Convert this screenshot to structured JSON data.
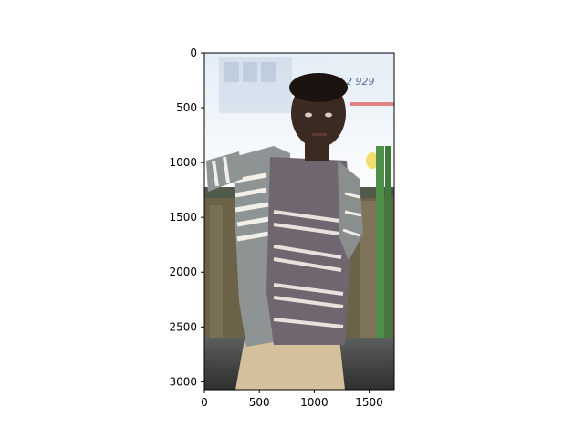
{
  "image_axes": {
    "x_range": [
      0,
      1728
    ],
    "y_range": [
      0,
      3072
    ],
    "x_ticks": [
      0,
      500,
      1000,
      1500
    ],
    "y_ticks": [
      0,
      500,
      1000,
      1500,
      2000,
      2500,
      3000
    ],
    "y_inverted": true
  },
  "photo": {
    "subject": "person",
    "background_text": "62 929",
    "colors": {
      "sky": "#eef3f8",
      "shirt": "#6f6670",
      "stripe": "#e8e2dc",
      "jacket": "#8e9493",
      "skin": "#3b2a22",
      "trousers": "#d4c09a",
      "fence": "#6b6248",
      "green_pole": "#4f8f4a"
    }
  }
}
